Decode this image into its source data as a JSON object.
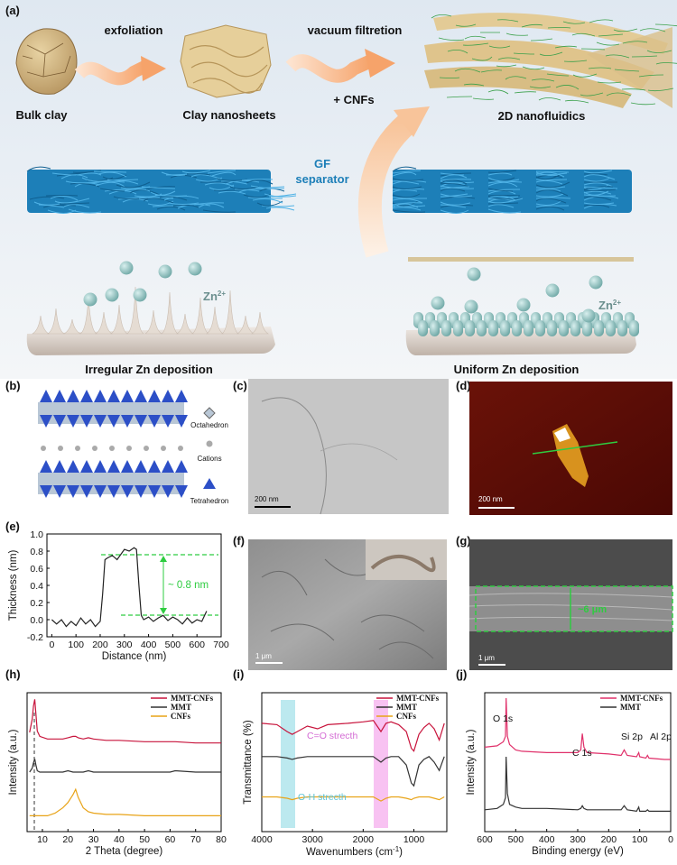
{
  "figure": {
    "panel_labels": [
      "(a)",
      "(b)",
      "(c)",
      "(d)",
      "(e)",
      "(f)",
      "(g)",
      "(h)",
      "(i)",
      "(j)"
    ],
    "schematic": {
      "step1": "exfoliation",
      "step2": "vacuum filtretion",
      "additive": "+ CNFs",
      "stage1": "Bulk clay",
      "stage2": "Clay nanosheets",
      "stage3": "2D nanofluidics",
      "separator": [
        "GF",
        "separator"
      ],
      "ion": {
        "base": "Zn",
        "charge": "2+"
      },
      "left_caption": "Irregular Zn deposition",
      "right_caption": "Uniform Zn deposition"
    },
    "structure": {
      "octahedron": "Octahedron",
      "cations": "Cations",
      "tetrahedron": "Tetrahedron"
    },
    "scale_bars": {
      "c": "200 nm",
      "d": "200 nm",
      "f": "1 μm",
      "g": "1 μm"
    },
    "g_thickness": "~6 μm"
  },
  "chart_data": [
    {
      "type": "line",
      "xlabel": "Distance (nm)",
      "ylabel": "Thickness (nm)",
      "color": "#222222",
      "x": [
        0,
        20,
        40,
        60,
        80,
        100,
        120,
        140,
        160,
        180,
        200,
        210,
        220,
        230,
        250,
        270,
        290,
        300,
        320,
        340,
        350,
        360,
        370,
        380,
        400,
        420,
        440,
        460,
        480,
        500,
        520,
        540,
        560,
        580,
        600,
        620,
        640
      ],
      "values": [
        0.0,
        -0.05,
        0.0,
        -0.08,
        -0.02,
        -0.07,
        0.02,
        -0.05,
        0.0,
        -0.08,
        -0.02,
        0.3,
        0.7,
        0.72,
        0.75,
        0.7,
        0.78,
        0.82,
        0.8,
        0.84,
        0.82,
        0.4,
        0.05,
        0.0,
        0.03,
        -0.02,
        0.02,
        0.05,
        -0.01,
        0.03,
        0.0,
        -0.05,
        0.02,
        -0.04,
        0.0,
        -0.02,
        0.1
      ],
      "xlim": [
        -20,
        700
      ],
      "xticks": [
        0,
        100,
        200,
        300,
        400,
        500,
        600,
        700
      ],
      "ylim": [
        -0.2,
        1.0
      ],
      "yticks": [
        -0.2,
        {
          "value": 0,
          "label": "0.0"
        },
        0.2,
        0.4,
        0.6,
        0.8,
        {
          "value": 1,
          "label": "1.0"
        }
      ],
      "annotations": [
        "~ 0.8 nm"
      ]
    },
    {
      "type": "line",
      "xlabel": "2 Theta (degree)",
      "ylabel": "Intensity (a.u.)",
      "legend": "upper right",
      "x": [
        5,
        6,
        6.5,
        7,
        7.5,
        8,
        9,
        12,
        15,
        18,
        20,
        22,
        23,
        24,
        26,
        28,
        30,
        35,
        40,
        50,
        60,
        62,
        70,
        80
      ],
      "series": [
        {
          "name": "MMT-CNFs",
          "color": "#c8143c",
          "values": [
            75,
            85,
            95,
            100,
            88,
            76,
            72,
            70,
            70,
            70,
            71,
            72,
            72,
            71,
            70,
            71,
            70,
            69,
            69,
            68,
            68,
            68,
            67,
            67
          ]
        },
        {
          "name": "MMT",
          "color": "#333333",
          "values": [
            45,
            48,
            52,
            55,
            50,
            46,
            45,
            45,
            45,
            45,
            46,
            45,
            45,
            45,
            45,
            46,
            45,
            45,
            45,
            45,
            45,
            46,
            45,
            45
          ]
        },
        {
          "name": "CNFs",
          "color": "#e8a317",
          "values": [
            12,
            12,
            12,
            12,
            12,
            12,
            12,
            12,
            14,
            18,
            22,
            28,
            32,
            26,
            18,
            15,
            14,
            13,
            13,
            12,
            12,
            12,
            12,
            12
          ]
        }
      ],
      "xlim": [
        4,
        80
      ],
      "xticks": [
        10,
        20,
        30,
        40,
        50,
        60,
        70,
        80
      ],
      "ylim": [
        0,
        105
      ]
    },
    {
      "type": "line",
      "xlabel": {
        "text": "Wavenumbers (cm",
        "sup": "-1",
        "end": ")"
      },
      "ylabel": "Transmittance (%)",
      "legend": "upper right",
      "x": [
        4000,
        3700,
        3500,
        3400,
        3300,
        3100,
        2900,
        2700,
        2300,
        2000,
        1800,
        1650,
        1550,
        1450,
        1300,
        1150,
        1050,
        1000,
        900,
        800,
        700,
        600,
        500,
        400
      ],
      "series": [
        {
          "name": "MMT-CNFs",
          "color": "#c8143c",
          "values": [
            78,
            77,
            72,
            70,
            72,
            76,
            74,
            77,
            78,
            79,
            80,
            72,
            78,
            79,
            77,
            72,
            60,
            58,
            70,
            75,
            78,
            74,
            66,
            78
          ]
        },
        {
          "name": "MMT",
          "color": "#333333",
          "values": [
            54,
            54,
            53,
            52,
            53,
            54,
            54,
            54,
            54,
            54,
            54,
            50,
            53,
            54,
            54,
            48,
            35,
            33,
            48,
            52,
            54,
            50,
            44,
            54
          ]
        },
        {
          "name": "CNFs",
          "color": "#e8a317",
          "values": [
            25,
            25,
            24,
            23,
            24,
            25,
            25,
            25,
            25,
            25,
            25,
            22,
            24,
            25,
            25,
            24,
            23,
            24,
            25,
            25,
            25,
            24,
            23,
            25
          ]
        }
      ],
      "xlim": [
        4000,
        350
      ],
      "xticks": [
        4000,
        3000,
        2000,
        1000
      ],
      "ylim": [
        0,
        100
      ],
      "annotations": [
        "C=O strecth",
        "O-H strecth"
      ]
    },
    {
      "type": "line",
      "xlabel": "Binding energy (eV)",
      "ylabel": "Intensity (a.u.)",
      "legend": "upper right",
      "x": [
        600,
        560,
        540,
        533,
        531,
        527,
        520,
        500,
        480,
        400,
        300,
        290,
        285,
        280,
        270,
        200,
        160,
        150,
        140,
        110,
        103,
        100,
        80,
        75,
        70,
        20,
        0
      ],
      "series": [
        {
          "name": "MMT-CNFs",
          "color": "#e0306a",
          "values": [
            62,
            63,
            66,
            70,
            98,
            70,
            64,
            60,
            59,
            58,
            58,
            60,
            72,
            62,
            58,
            57,
            56,
            60,
            56,
            55,
            58,
            55,
            54,
            56,
            54,
            53,
            53
          ]
        },
        {
          "name": "MMT",
          "color": "#333333",
          "values": [
            16,
            17,
            20,
            25,
            55,
            28,
            20,
            18,
            17,
            17,
            16,
            17,
            19,
            17,
            16,
            16,
            16,
            19,
            16,
            15,
            18,
            15,
            15,
            16,
            15,
            15,
            15
          ]
        }
      ],
      "xlim": [
        600,
        0
      ],
      "xticks": [
        600,
        500,
        400,
        300,
        200,
        100,
        0
      ],
      "ylim": [
        0,
        102
      ],
      "annotations": [
        "O 1s",
        "C 1s",
        "Si 2p",
        "Al 2p"
      ]
    }
  ]
}
